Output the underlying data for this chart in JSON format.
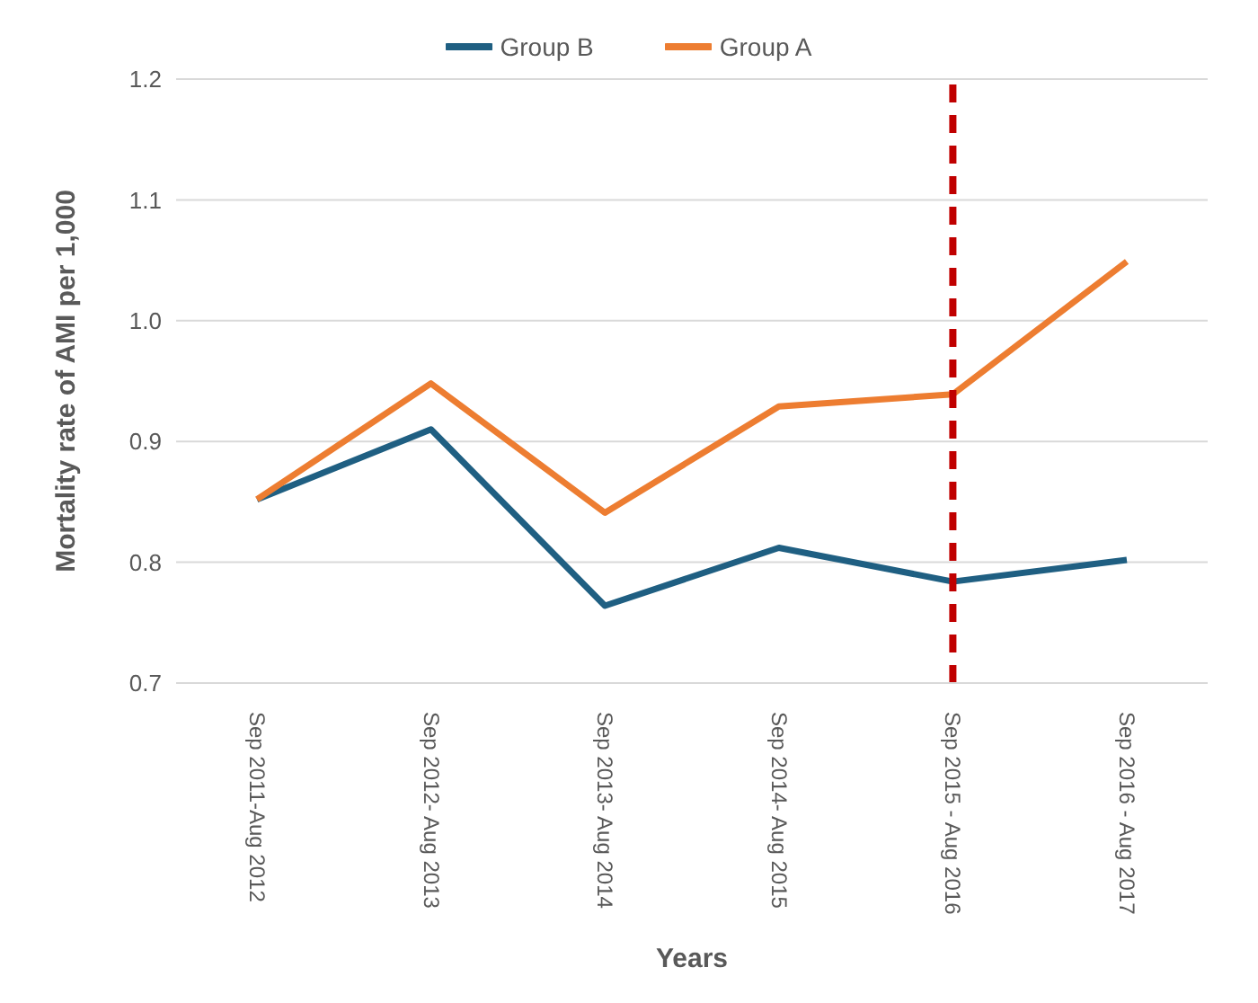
{
  "chart_data": {
    "type": "line",
    "xlabel": "Years",
    "ylabel": "Mortality rate of AMI per 1,000",
    "categories": [
      "Sep 2011-Aug 2012",
      "Sep 2012- Aug 2013",
      "Sep 2013- Aug 2014",
      "Sep 2014- Aug 2015",
      "Sep 2015 - Aug 2016",
      "Sep 2016 - Aug 2017"
    ],
    "series": [
      {
        "name": "Group B",
        "color": "#1f5f82",
        "values": [
          0.852,
          0.91,
          0.764,
          0.812,
          0.784,
          0.802
        ]
      },
      {
        "name": "Group A",
        "color": "#ed7d31",
        "values": [
          0.852,
          0.948,
          0.841,
          0.929,
          0.939,
          1.049
        ]
      }
    ],
    "ylim": [
      0.7,
      1.2
    ],
    "yticks": [
      {
        "value": 0.7,
        "label": "0.7"
      },
      {
        "value": 0.8,
        "label": "0.8"
      },
      {
        "value": 0.9,
        "label": "0.9"
      },
      {
        "value": 1,
        "label": "1.0"
      },
      {
        "value": 1.1,
        "label": "1.1"
      },
      {
        "value": 1.2,
        "label": "1.2"
      }
    ],
    "grid": "y",
    "legend": "top",
    "marker": "none",
    "line_style": "solid",
    "ref_lines": [
      {
        "axis": "x",
        "value": "Sep 2015 - Aug 2016",
        "color": "#c00000",
        "line_style": "dashed"
      }
    ]
  }
}
